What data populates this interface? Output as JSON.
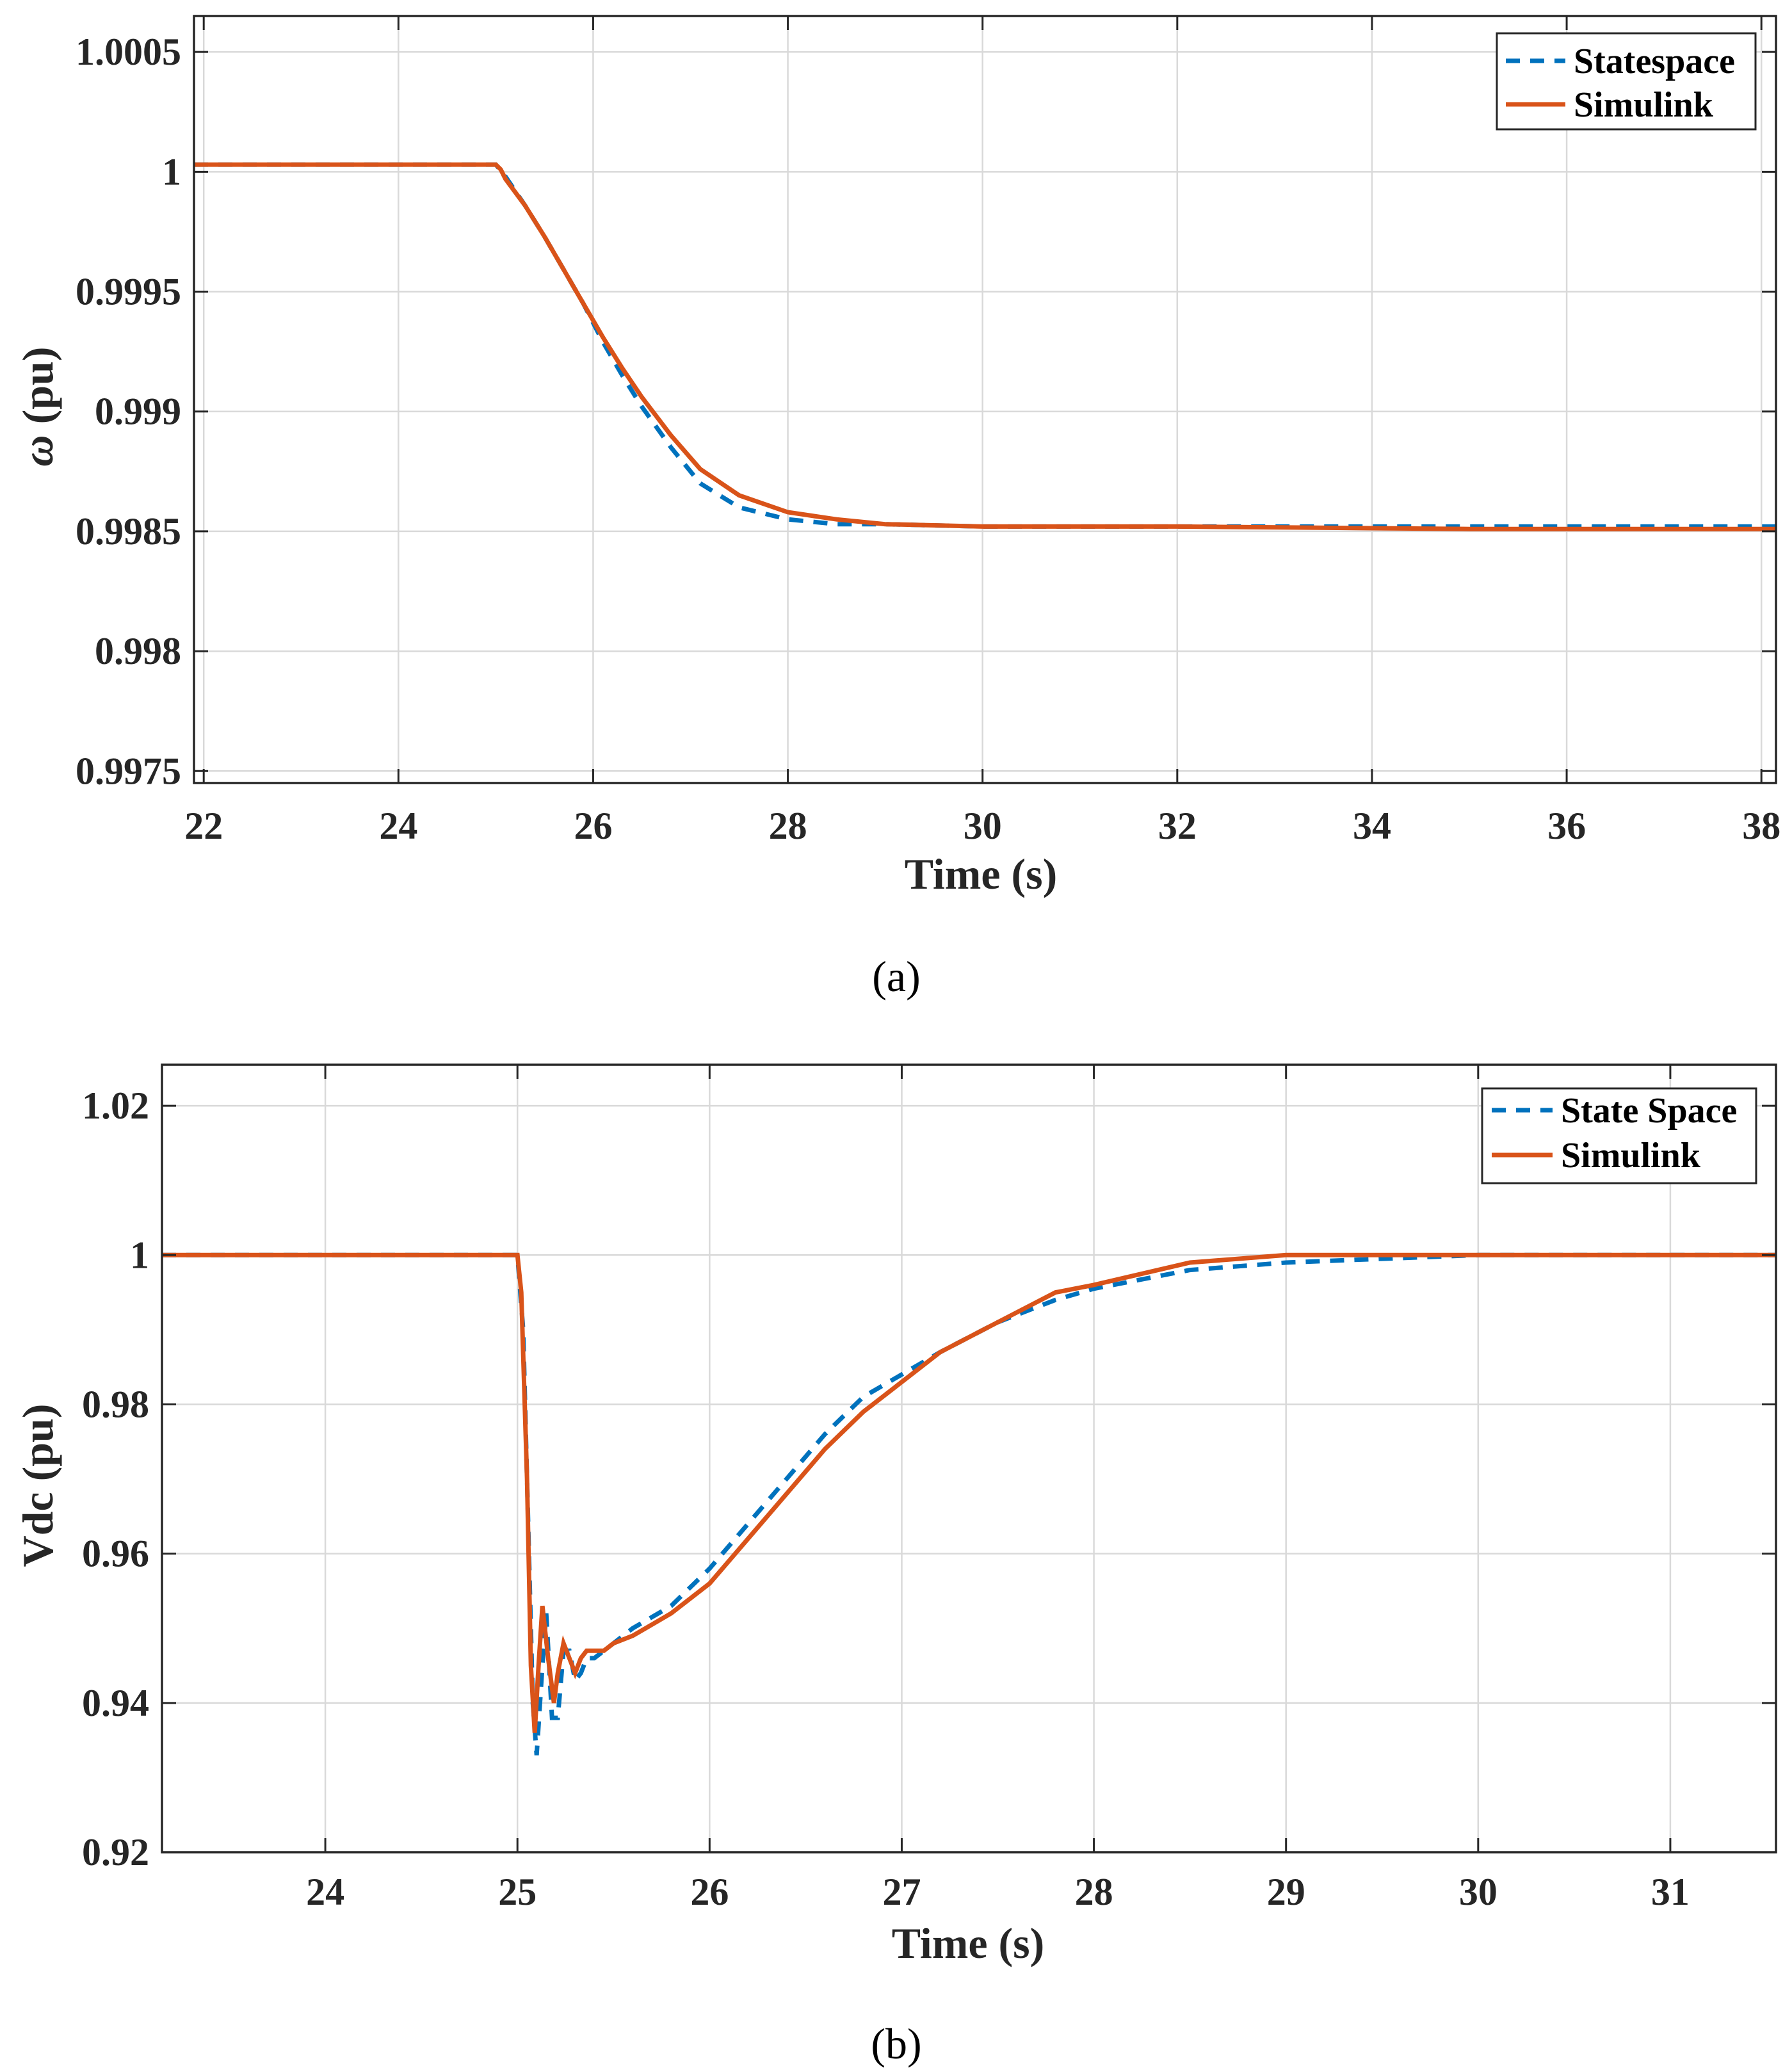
{
  "chart_data": [
    {
      "type": "line",
      "panel": "a",
      "caption": "(a)",
      "xlabel": "Time (s)",
      "ylabel": "ω (pu)",
      "ylabel_symbol": "ω",
      "ylabel_unit": " (pu)",
      "xlim": [
        21.9,
        38.15
      ],
      "ylim": [
        0.99745,
        1.00065
      ],
      "xticks": [
        22,
        24,
        26,
        28,
        30,
        32,
        34,
        36,
        38
      ],
      "yticks": [
        0.9975,
        0.998,
        0.9985,
        0.999,
        0.9995,
        1,
        1.0005
      ],
      "xtick_labels": [
        "22",
        "24",
        "26",
        "28",
        "30",
        "32",
        "34",
        "36",
        "38"
      ],
      "ytick_labels": [
        "0.9975",
        "0.998",
        "0.9985",
        "0.999",
        "0.9995",
        "1",
        "1.0005"
      ],
      "grid": true,
      "legend": {
        "position": "top-right",
        "entries": [
          "Statespace",
          "Simulink"
        ]
      },
      "series": [
        {
          "name": "Statespace",
          "style": "dashed",
          "color": "#0072BD",
          "x": [
            21.9,
            25.0,
            25.1,
            25.3,
            25.5,
            25.7,
            25.9,
            26.1,
            26.3,
            26.5,
            26.8,
            27.1,
            27.5,
            28.0,
            28.5,
            29.0,
            30.0,
            32.0,
            35.0,
            38.15
          ],
          "y": [
            1.00003,
            1.00003,
            0.99998,
            0.99986,
            0.99973,
            0.99959,
            0.99945,
            0.99929,
            0.99915,
            0.99902,
            0.99885,
            0.9987,
            0.9986,
            0.99855,
            0.99853,
            0.99853,
            0.99852,
            0.99852,
            0.99852,
            0.99852
          ]
        },
        {
          "name": "Simulink",
          "style": "solid",
          "color": "#D95319",
          "x": [
            21.9,
            25.0,
            25.05,
            25.1,
            25.3,
            25.5,
            25.7,
            25.9,
            26.1,
            26.3,
            26.5,
            26.8,
            27.1,
            27.5,
            28.0,
            28.5,
            29.0,
            30.0,
            32.0,
            35.0,
            38.15
          ],
          "y": [
            1.00003,
            1.00003,
            1.00001,
            0.99997,
            0.99986,
            0.99973,
            0.99959,
            0.99945,
            0.99931,
            0.99918,
            0.99906,
            0.9989,
            0.99876,
            0.99865,
            0.99858,
            0.99855,
            0.99853,
            0.99852,
            0.99852,
            0.99851,
            0.99851
          ]
        }
      ]
    },
    {
      "type": "line",
      "panel": "b",
      "caption": "(b)",
      "xlabel": "Time (s)",
      "ylabel": "Vdc (pu)",
      "xlim": [
        23.15,
        31.55
      ],
      "ylim": [
        0.92,
        1.0255
      ],
      "xticks": [
        24,
        25,
        26,
        27,
        28,
        29,
        30,
        31
      ],
      "yticks": [
        0.92,
        0.94,
        0.96,
        0.98,
        1,
        1.02
      ],
      "xtick_labels": [
        "24",
        "25",
        "26",
        "27",
        "28",
        "29",
        "30",
        "31"
      ],
      "ytick_labels": [
        "0.92",
        "0.94",
        "0.96",
        "0.98",
        "1",
        "1.02"
      ],
      "grid": true,
      "legend": {
        "position": "top-right",
        "entries": [
          "State Space",
          "Simulink"
        ]
      },
      "series": [
        {
          "name": "State Space",
          "style": "dashed",
          "color": "#0072BD",
          "x": [
            23.15,
            25.0,
            25.03,
            25.06,
            25.08,
            25.1,
            25.13,
            25.15,
            25.18,
            25.21,
            25.24,
            25.27,
            25.3,
            25.33,
            25.36,
            25.4,
            25.45,
            25.5,
            25.6,
            25.8,
            26.0,
            26.2,
            26.4,
            26.6,
            26.8,
            27.0,
            27.2,
            27.5,
            27.8,
            28.0,
            28.5,
            29.0,
            29.5,
            30.0,
            31.55
          ],
          "y": [
            1.0,
            1.0,
            0.99,
            0.96,
            0.94,
            0.933,
            0.945,
            0.952,
            0.938,
            0.938,
            0.947,
            0.947,
            0.943,
            0.944,
            0.946,
            0.946,
            0.947,
            0.948,
            0.95,
            0.953,
            0.958,
            0.964,
            0.97,
            0.976,
            0.981,
            0.984,
            0.987,
            0.991,
            0.994,
            0.9955,
            0.998,
            0.999,
            0.9995,
            1.0,
            1.0
          ]
        },
        {
          "name": "Simulink",
          "style": "solid",
          "color": "#D95319",
          "x": [
            23.15,
            25.0,
            25.02,
            25.05,
            25.07,
            25.09,
            25.11,
            25.13,
            25.16,
            25.19,
            25.21,
            25.24,
            25.27,
            25.3,
            25.33,
            25.36,
            25.4,
            25.45,
            25.5,
            25.6,
            25.8,
            26.0,
            26.2,
            26.4,
            26.6,
            26.8,
            27.0,
            27.2,
            27.5,
            27.8,
            28.0,
            28.5,
            29.0,
            29.5,
            30.0,
            31.55
          ],
          "y": [
            1.0,
            1.0,
            0.995,
            0.97,
            0.945,
            0.936,
            0.945,
            0.953,
            0.946,
            0.94,
            0.944,
            0.948,
            0.946,
            0.944,
            0.946,
            0.947,
            0.947,
            0.947,
            0.948,
            0.949,
            0.952,
            0.956,
            0.962,
            0.968,
            0.974,
            0.979,
            0.983,
            0.987,
            0.991,
            0.995,
            0.996,
            0.999,
            1.0,
            1.0,
            1.0,
            1.0
          ]
        }
      ]
    }
  ]
}
